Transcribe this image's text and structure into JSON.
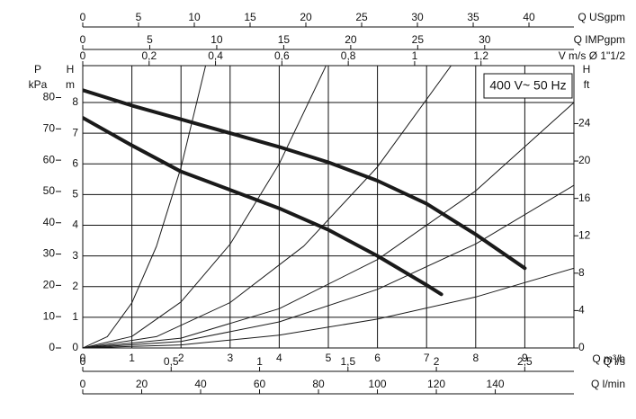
{
  "chart_data": {
    "type": "line",
    "annotation": "400 V~ 50 Hz",
    "x_label": "Q m³/h",
    "y_label": [
      "H",
      "m"
    ],
    "xlim": [
      0,
      10
    ],
    "xticks": [
      0,
      1,
      2,
      3,
      4,
      5,
      6,
      7,
      8,
      9
    ],
    "ylim": [
      0,
      9.2
    ],
    "yticks": [
      0,
      1,
      2,
      3,
      4,
      5,
      6,
      7,
      8
    ],
    "grid": true,
    "series": [
      {
        "color": "#1a1a1a",
        "width": 4,
        "x": [
          0,
          1,
          2,
          3,
          4,
          5,
          6,
          7,
          8,
          9
        ],
        "values": [
          8.4,
          7.9,
          7.45,
          7.0,
          6.55,
          6.05,
          5.45,
          4.7,
          3.7,
          2.6
        ]
      },
      {
        "color": "#1a1a1a",
        "width": 4,
        "x": [
          0,
          1,
          2,
          3,
          4,
          5,
          6,
          7,
          7.3
        ],
        "values": [
          7.5,
          6.6,
          5.75,
          5.15,
          4.55,
          3.85,
          3.0,
          2.05,
          1.75
        ]
      },
      {
        "color": "#1a1a1a",
        "width": 1,
        "x": [
          0,
          0.5,
          1,
          1.5,
          2,
          2.5
        ],
        "values": [
          0,
          0.37,
          1.47,
          3.31,
          5.88,
          9.19
        ]
      },
      {
        "color": "#1a1a1a",
        "width": 1,
        "x": [
          0,
          1,
          2,
          3,
          4,
          4.95
        ],
        "values": [
          0,
          0.375,
          1.5,
          3.38,
          6,
          9.19
        ]
      },
      {
        "color": "#1a1a1a",
        "width": 1,
        "x": [
          0,
          1.5,
          3,
          4.5,
          6,
          7.5
        ],
        "values": [
          0,
          0.37,
          1.48,
          3.32,
          5.9,
          9.2
        ]
      },
      {
        "color": "#1a1a1a",
        "width": 1,
        "x": [
          0,
          2,
          4,
          6,
          8,
          10
        ],
        "values": [
          0,
          0.32,
          1.28,
          2.88,
          5.12,
          8
        ]
      },
      {
        "color": "#1a1a1a",
        "width": 1,
        "x": [
          0,
          2,
          4,
          6,
          8,
          10
        ],
        "values": [
          0,
          0.21,
          0.85,
          1.91,
          3.39,
          5.3
        ]
      },
      {
        "color": "#1a1a1a",
        "width": 1,
        "x": [
          0,
          2,
          4,
          6,
          8,
          10
        ],
        "values": [
          0,
          0.1,
          0.42,
          0.94,
          1.66,
          2.6
        ]
      }
    ],
    "extra_axes": [
      {
        "side": "top",
        "label": [
          "Q USgpm"
        ],
        "lim": [
          0,
          44.03
        ],
        "ticks": [
          0,
          5,
          10,
          15,
          20,
          25,
          30,
          35,
          40
        ]
      },
      {
        "side": "top",
        "label": [
          "Q IMPgpm"
        ],
        "lim": [
          0,
          36.66
        ],
        "ticks": [
          0,
          5,
          10,
          15,
          20,
          25,
          30
        ]
      },
      {
        "side": "top",
        "label": [
          "V m/s Ø 1\"1/2"
        ],
        "lim": [
          0,
          1.48
        ],
        "ticks": [
          0,
          {
            "value": 0.2,
            "label": "0,2"
          },
          {
            "value": 0.4,
            "label": "0,4"
          },
          {
            "value": 0.6,
            "label": "0,6"
          },
          {
            "value": 0.8,
            "label": "0,8"
          },
          1,
          {
            "value": 1.2,
            "label": "1,2"
          }
        ]
      },
      {
        "side": "bottom",
        "label": [
          "Q l/s"
        ],
        "lim": [
          0,
          2.778
        ],
        "ticks": [
          0,
          {
            "value": 0.5,
            "label": "0,5"
          },
          1,
          {
            "value": 1.5,
            "label": "1,5"
          },
          2,
          {
            "value": 2.5,
            "label": "2,5"
          }
        ]
      },
      {
        "side": "bottom",
        "label": [
          "Q l/min"
        ],
        "lim": [
          0,
          166.7
        ],
        "ticks": [
          0,
          20,
          40,
          60,
          80,
          100,
          120,
          140
        ]
      },
      {
        "side": "left",
        "label": [
          "P",
          "kPa"
        ],
        "lim": [
          0,
          90.2
        ],
        "ticks": [
          0,
          10,
          20,
          30,
          40,
          50,
          60,
          70,
          80
        ]
      },
      {
        "side": "right",
        "label": [
          "H",
          "ft"
        ],
        "lim": [
          0,
          30.2
        ],
        "ticks": [
          0,
          4,
          8,
          12,
          16,
          20,
          24
        ]
      }
    ]
  }
}
